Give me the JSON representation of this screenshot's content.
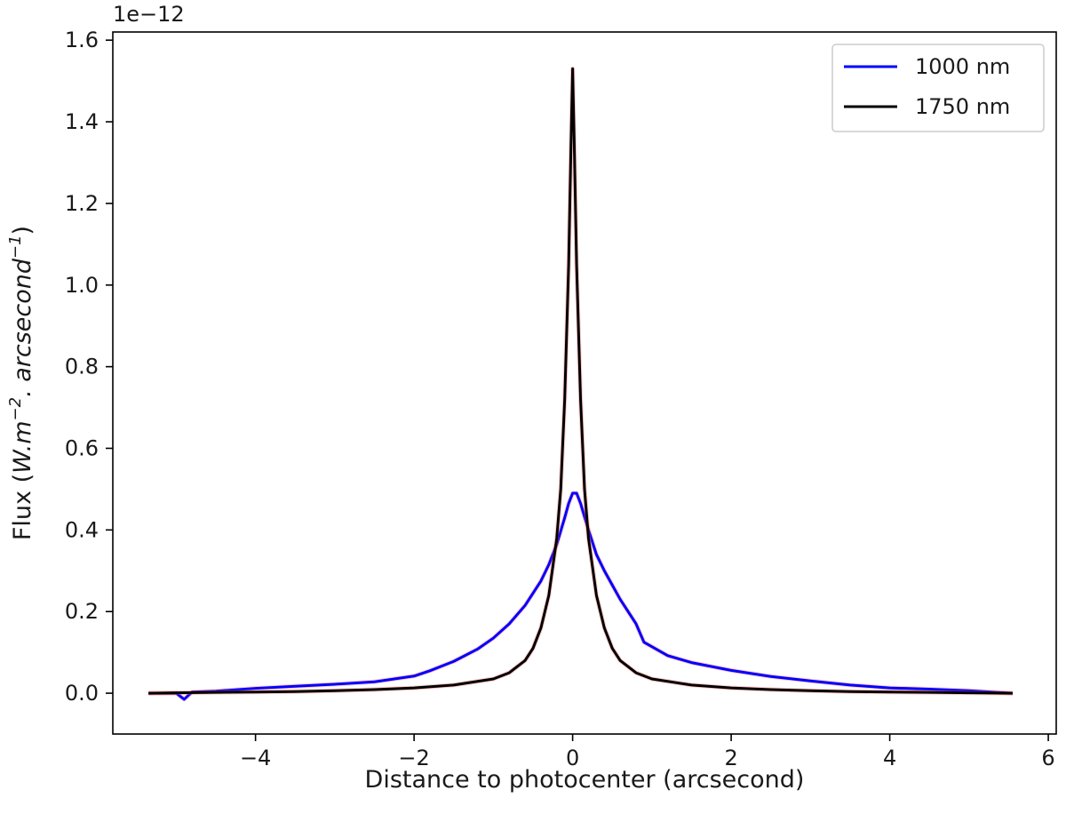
{
  "chart_data": {
    "type": "line",
    "title": "",
    "xlabel": "Distance to photocenter (arcsecond)",
    "ylabel": {
      "prefix": "Flux (",
      "units": "W.m",
      "exp1": "−2",
      "mid": ". arcsecond",
      "exp2": "−1",
      "suffix": ")"
    },
    "y_offset_label": "1e−12",
    "xlim": [
      -5.8,
      6.1
    ],
    "ylim": [
      -0.1,
      1.62
    ],
    "x_ticks": [
      {
        "value": -4,
        "label": "−4"
      },
      {
        "value": -2,
        "label": "−2"
      },
      {
        "value": 0,
        "label": "0"
      },
      {
        "value": 2,
        "label": "2"
      },
      {
        "value": 4,
        "label": "4"
      },
      {
        "value": 6,
        "label": "6"
      }
    ],
    "y_ticks": [
      {
        "value": 0.0,
        "label": "0.0"
      },
      {
        "value": 0.2,
        "label": "0.2"
      },
      {
        "value": 0.4,
        "label": "0.4"
      },
      {
        "value": 0.6,
        "label": "0.6"
      },
      {
        "value": 0.8,
        "label": "0.8"
      },
      {
        "value": 1.0,
        "label": "1.0"
      },
      {
        "value": 1.2,
        "label": "1.2"
      },
      {
        "value": 1.4,
        "label": "1.4"
      },
      {
        "value": 1.6,
        "label": "1.6"
      }
    ],
    "grid": false,
    "legend_position": "top-right",
    "series": [
      {
        "name": "1000 nm",
        "color": "#0000ff",
        "points": [
          [
            -5.35,
            0.0
          ],
          [
            -5.0,
            0.0
          ],
          [
            -4.9,
            -0.015
          ],
          [
            -4.8,
            0.003
          ],
          [
            -4.5,
            0.005
          ],
          [
            -4.0,
            0.012
          ],
          [
            -3.5,
            0.017
          ],
          [
            -3.0,
            0.022
          ],
          [
            -2.5,
            0.028
          ],
          [
            -2.0,
            0.042
          ],
          [
            -1.8,
            0.055
          ],
          [
            -1.5,
            0.078
          ],
          [
            -1.2,
            0.108
          ],
          [
            -1.0,
            0.135
          ],
          [
            -0.8,
            0.17
          ],
          [
            -0.6,
            0.215
          ],
          [
            -0.4,
            0.275
          ],
          [
            -0.3,
            0.315
          ],
          [
            -0.2,
            0.365
          ],
          [
            -0.1,
            0.43
          ],
          [
            -0.05,
            0.465
          ],
          [
            0.0,
            0.49
          ],
          [
            0.05,
            0.49
          ],
          [
            0.1,
            0.465
          ],
          [
            0.2,
            0.4
          ],
          [
            0.3,
            0.34
          ],
          [
            0.4,
            0.3
          ],
          [
            0.5,
            0.265
          ],
          [
            0.6,
            0.23
          ],
          [
            0.8,
            0.17
          ],
          [
            0.9,
            0.125
          ],
          [
            1.2,
            0.092
          ],
          [
            1.5,
            0.075
          ],
          [
            2.0,
            0.056
          ],
          [
            2.5,
            0.041
          ],
          [
            3.0,
            0.03
          ],
          [
            3.5,
            0.02
          ],
          [
            4.0,
            0.013
          ],
          [
            4.5,
            0.01
          ],
          [
            5.0,
            0.006
          ],
          [
            5.55,
            0.0
          ]
        ]
      },
      {
        "name": "1750 nm",
        "color": "#000000",
        "points": [
          [
            -5.35,
            0.0
          ],
          [
            -5.0,
            0.001
          ],
          [
            -4.5,
            0.002
          ],
          [
            -4.0,
            0.003
          ],
          [
            -3.5,
            0.004
          ],
          [
            -3.0,
            0.006
          ],
          [
            -2.5,
            0.009
          ],
          [
            -2.0,
            0.013
          ],
          [
            -1.5,
            0.02
          ],
          [
            -1.0,
            0.035
          ],
          [
            -0.8,
            0.05
          ],
          [
            -0.6,
            0.08
          ],
          [
            -0.5,
            0.11
          ],
          [
            -0.4,
            0.16
          ],
          [
            -0.3,
            0.24
          ],
          [
            -0.2,
            0.38
          ],
          [
            -0.15,
            0.5
          ],
          [
            -0.1,
            0.72
          ],
          [
            -0.05,
            1.05
          ],
          [
            -0.02,
            1.35
          ],
          [
            0.0,
            1.53
          ],
          [
            0.02,
            1.35
          ],
          [
            0.05,
            1.05
          ],
          [
            0.1,
            0.72
          ],
          [
            0.15,
            0.5
          ],
          [
            0.2,
            0.38
          ],
          [
            0.3,
            0.24
          ],
          [
            0.4,
            0.16
          ],
          [
            0.5,
            0.11
          ],
          [
            0.6,
            0.08
          ],
          [
            0.8,
            0.05
          ],
          [
            1.0,
            0.035
          ],
          [
            1.5,
            0.02
          ],
          [
            2.0,
            0.013
          ],
          [
            2.5,
            0.009
          ],
          [
            3.0,
            0.006
          ],
          [
            3.5,
            0.004
          ],
          [
            4.0,
            0.003
          ],
          [
            4.5,
            0.002
          ],
          [
            5.0,
            0.001
          ],
          [
            5.55,
            0.0
          ]
        ]
      }
    ]
  }
}
